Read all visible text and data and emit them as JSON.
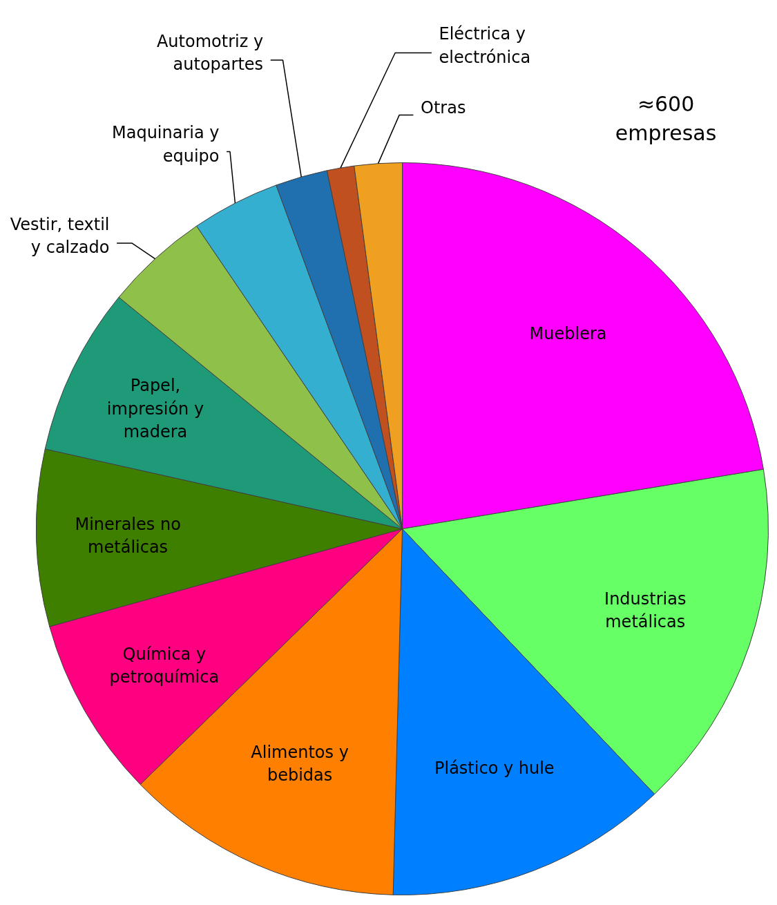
{
  "chart_data": {
    "type": "pie",
    "categories": [
      "Mueblera",
      "Industrias metálicas",
      "Plástico y hule",
      "Alimentos y bebidas",
      "Química y petroquímica",
      "Minerales no metálicas",
      "Papel, impresión y madera",
      "Vestir, textil y calzado",
      "Maquinaria y equipo",
      "Automotriz y autopartes",
      "Eléctrica y electrónica",
      "Otras"
    ],
    "values": [
      22.4,
      15.5,
      12.5,
      12.3,
      8.0,
      7.8,
      7.4,
      4.6,
      3.9,
      2.3,
      1.2,
      2.1
    ],
    "colors": [
      "#ff00ff",
      "#66ff66",
      "#0080ff",
      "#ff8000",
      "#ff0080",
      "#3f7f00",
      "#1f9a78",
      "#8fc04a",
      "#35afcf",
      "#2070b0",
      "#c05020",
      "#f0a020"
    ],
    "annotations": [
      "≈600 empresas"
    ]
  }
}
